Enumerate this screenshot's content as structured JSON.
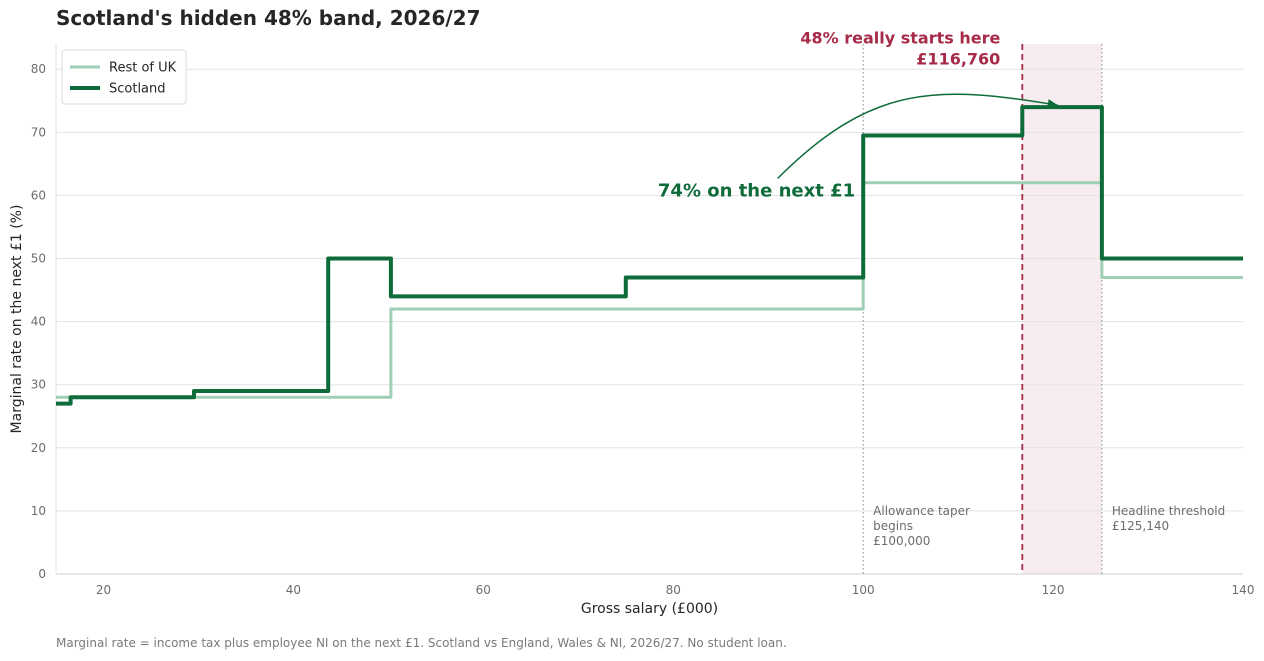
{
  "title": "Scotland's hidden 48% band, 2026/27",
  "footnote": "Marginal rate = income tax plus employee NI on the next £1. Scotland vs England, Wales & NI, 2026/27. No student loan.",
  "colors": {
    "rest_of_uk": "#9fcfb4",
    "scotland": "#0e6b3a",
    "highlight": "#a62b48",
    "band_fill": "#f7edf0",
    "grid": "#e3e3e3",
    "ref_line": "#8a8a8a",
    "tick_text": "#6d6d6d",
    "axis_label": "#262626"
  },
  "chart_data": {
    "type": "line",
    "xlabel": "Gross salary (£000)",
    "ylabel": "Marginal rate on the next £1 (%)",
    "xlim": [
      15,
      140
    ],
    "ylim": [
      0,
      84
    ],
    "x_ticks": [
      20,
      40,
      60,
      80,
      100,
      120,
      140
    ],
    "y_ticks": [
      0,
      10,
      20,
      30,
      40,
      50,
      60,
      70,
      80
    ],
    "grid": "horizontal",
    "legend_position": "top-left",
    "series": [
      {
        "name": "Rest of UK",
        "color_key": "rest_of_uk",
        "points": [
          [
            15,
            28
          ],
          [
            50.27,
            28
          ],
          [
            50.27,
            42
          ],
          [
            100,
            42
          ],
          [
            100,
            62
          ],
          [
            125.14,
            62
          ],
          [
            125.14,
            47
          ],
          [
            140,
            47
          ]
        ]
      },
      {
        "name": "Scotland",
        "color_key": "scotland",
        "points": [
          [
            15,
            27
          ],
          [
            16.54,
            27
          ],
          [
            16.54,
            28
          ],
          [
            29.53,
            28
          ],
          [
            29.53,
            29
          ],
          [
            43.66,
            29
          ],
          [
            43.66,
            50
          ],
          [
            50.27,
            50
          ],
          [
            50.27,
            44
          ],
          [
            75,
            44
          ],
          [
            75,
            47
          ],
          [
            100,
            47
          ],
          [
            100,
            69.5
          ],
          [
            116.76,
            69.5
          ],
          [
            116.76,
            74
          ],
          [
            125.14,
            74
          ],
          [
            125.14,
            50
          ],
          [
            140,
            50
          ]
        ]
      }
    ],
    "shaded_band": {
      "x_start": 116.76,
      "x_end": 125.14
    },
    "reference_lines": [
      {
        "x": 100,
        "style": "dotted",
        "label_lines": [
          "Allowance taper",
          "begins",
          "£100,000"
        ]
      },
      {
        "x": 125.14,
        "style": "dotted",
        "label_lines": [
          "Headline threshold",
          "£125,140"
        ]
      },
      {
        "x": 116.76,
        "style": "dashed",
        "label_lines": [
          "48% really starts here",
          "£116,760"
        ]
      }
    ],
    "annotation": {
      "text": "74% on the next £1",
      "text_at": [
        100,
        60
      ],
      "arrow_from": [
        91,
        62.7
      ],
      "arrow_to": [
        120.5,
        74.3
      ]
    }
  }
}
